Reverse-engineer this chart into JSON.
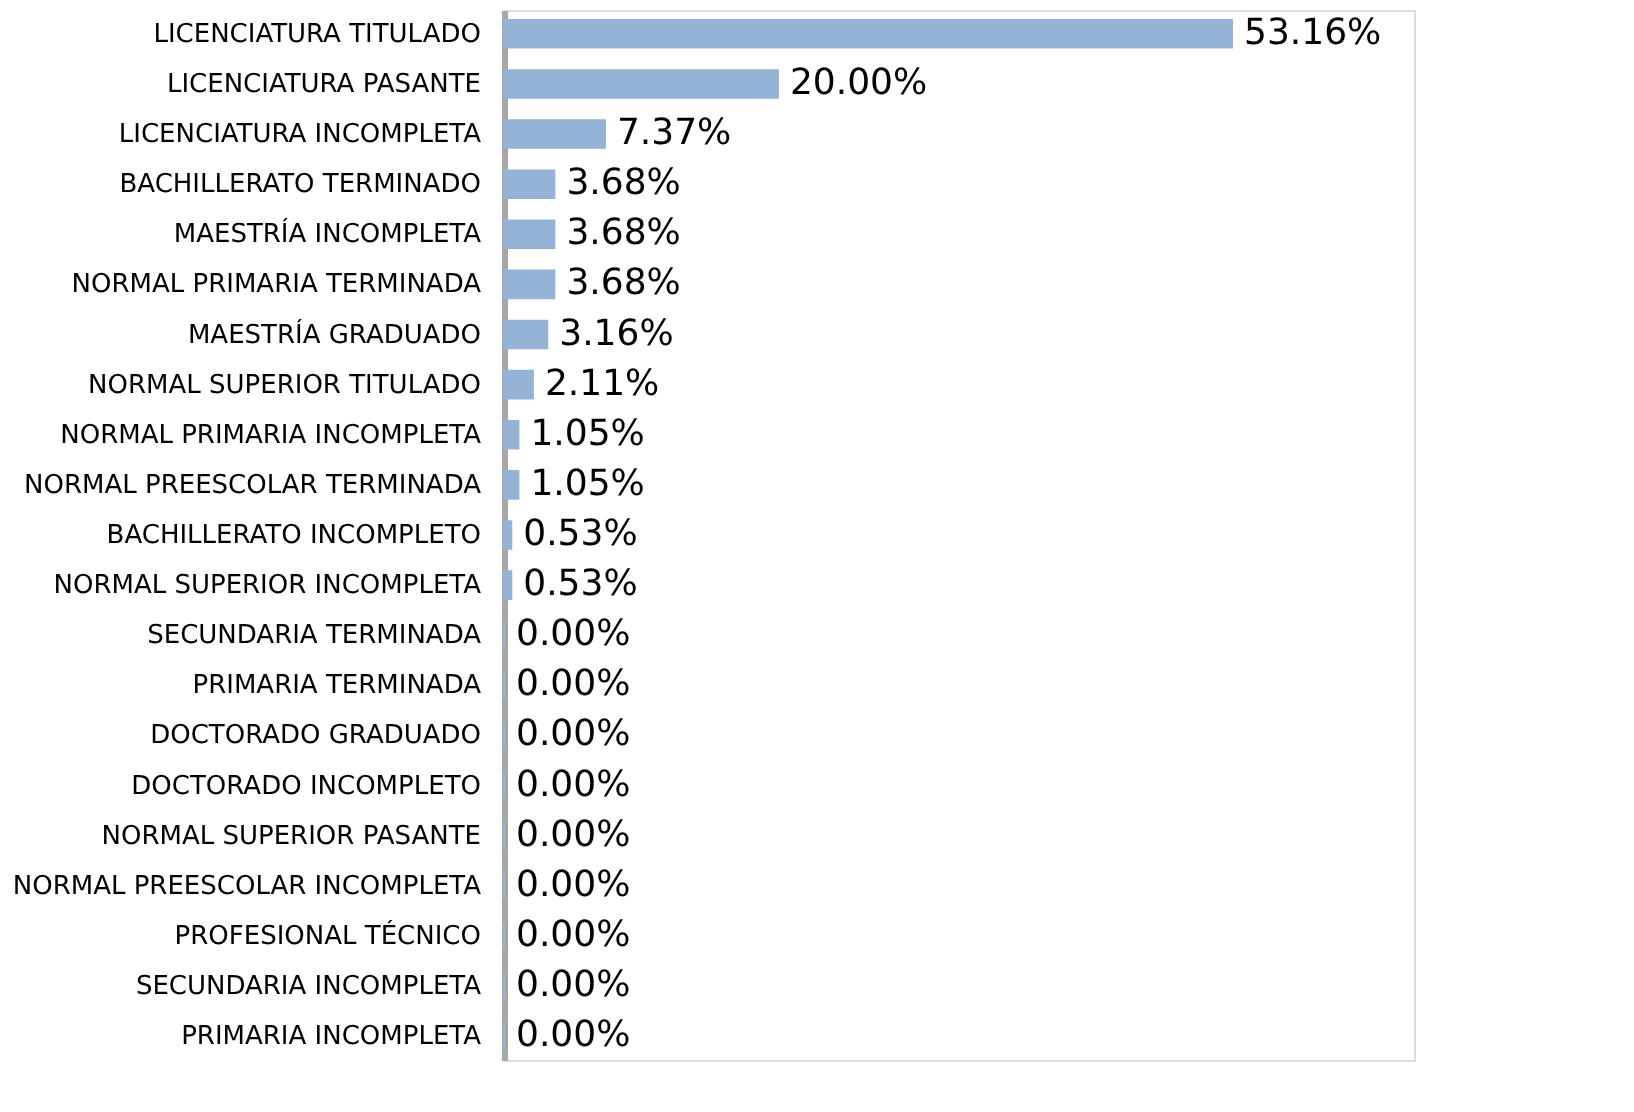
{
  "chart_data": {
    "type": "bar",
    "orientation": "horizontal",
    "color": "#95b3d7",
    "categories": [
      "LICENCIATURA TITULADO",
      "LICENCIATURA PASANTE",
      "LICENCIATURA INCOMPLETA",
      "BACHILLERATO TERMINADO",
      "MAESTRÍA INCOMPLETA",
      "NORMAL PRIMARIA TERMINADA",
      "MAESTRÍA GRADUADO",
      "NORMAL SUPERIOR TITULADO",
      "NORMAL PRIMARIA INCOMPLETA",
      "NORMAL PREESCOLAR TERMINADA",
      "BACHILLERATO INCOMPLETO",
      "NORMAL SUPERIOR INCOMPLETA",
      "SECUNDARIA TERMINADA",
      "PRIMARIA TERMINADA",
      "DOCTORADO GRADUADO",
      "DOCTORADO INCOMPLETO",
      "NORMAL SUPERIOR PASANTE",
      "NORMAL PREESCOLAR INCOMPLETA",
      "PROFESIONAL TÉCNICO",
      "SECUNDARIA INCOMPLETA",
      "PRIMARIA INCOMPLETA"
    ],
    "values": [
      53.16,
      20.0,
      7.37,
      3.68,
      3.68,
      3.68,
      3.16,
      2.11,
      1.05,
      1.05,
      0.53,
      0.53,
      0,
      0,
      0,
      0,
      0,
      0,
      0,
      0,
      0
    ],
    "value_labels": [
      "53.16%",
      "20.00%",
      "7.37%",
      "3.68%",
      "3.68%",
      "3.68%",
      "3.16%",
      "2.11%",
      "1.05%",
      "1.05%",
      "0.53%",
      "0.53%",
      "0.00%",
      "0.00%",
      "0.00%",
      "0.00%",
      "0.00%",
      "0.00%",
      "0.00%",
      "0.00%",
      "0.00%"
    ],
    "grid": false
  }
}
